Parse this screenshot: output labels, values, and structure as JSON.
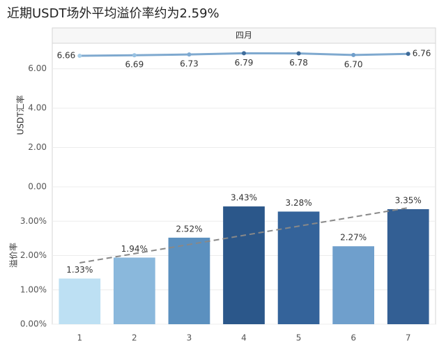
{
  "chart_data": [
    {
      "type": "line",
      "title": "近期USDT场外平均溢价率约为2.59%",
      "subtitle": "四月",
      "y_label": "USDT汇率",
      "values": [
        6.66,
        6.69,
        6.73,
        6.79,
        6.78,
        6.7,
        6.76
      ],
      "value_labels": [
        "6.66",
        "6.69",
        "6.73",
        "6.79",
        "6.78",
        "6.70",
        "6.76"
      ],
      "color": "#7fa9cf",
      "point_colors": [
        "#a9cfe9",
        "#97c1e2",
        "#7eaad2",
        "#3f6d9c",
        "#3a6795",
        "#6f9ecb",
        "#3c6a98"
      ],
      "ylim": [
        0,
        7.3
      ],
      "yticks": [
        {
          "value": 0,
          "label": "0.00"
        },
        {
          "value": 2,
          "label": "2.00"
        },
        {
          "value": 4,
          "label": "4.00"
        },
        {
          "value": 6,
          "label": "6.00"
        }
      ],
      "grid": true
    },
    {
      "type": "bar",
      "y_label": "溢价率",
      "categories": [
        "1",
        "2",
        "3",
        "4",
        "5",
        "6",
        "7"
      ],
      "values": [
        1.33,
        1.94,
        2.52,
        3.43,
        3.28,
        2.27,
        3.35
      ],
      "value_labels": [
        "1.33%",
        "1.94%",
        "2.52%",
        "3.43%",
        "3.28%",
        "2.27%",
        "3.35%"
      ],
      "colors": [
        "#bde0f3",
        "#8ab8dc",
        "#5b90bf",
        "#2b578a",
        "#34639a",
        "#6f9fcc",
        "#335f94"
      ],
      "ylim": [
        0,
        4
      ],
      "yticks": [
        {
          "value": 0,
          "label": "0.00%"
        },
        {
          "value": 1,
          "label": "1.00%"
        },
        {
          "value": 2,
          "label": "2.00%"
        },
        {
          "value": 3,
          "label": "3.00%"
        }
      ],
      "grid": true,
      "trendline": true
    }
  ]
}
